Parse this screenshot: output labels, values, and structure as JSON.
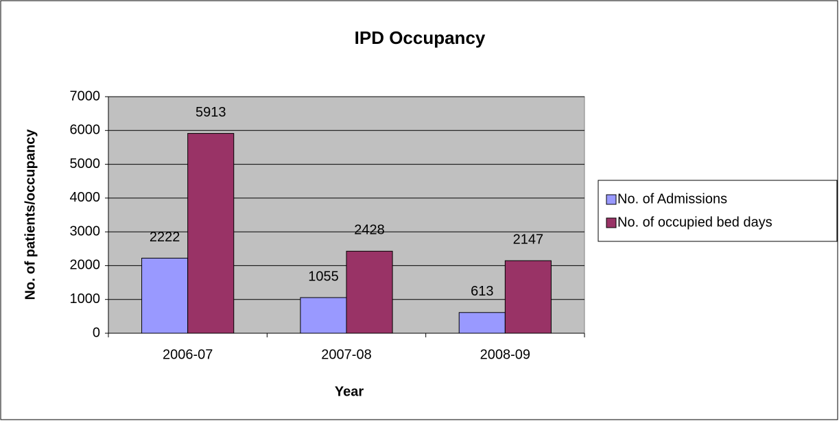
{
  "chart_data": {
    "type": "bar",
    "title": "IPD Occupancy",
    "x_label": "Year",
    "y_label": "No. of patients/occupancy",
    "categories": [
      "2006-07",
      "2007-08",
      "2008-09"
    ],
    "series": [
      {
        "name": "No. of Admissions",
        "color": "#9999ff",
        "values": [
          2222,
          1055,
          613
        ]
      },
      {
        "name": "No. of occupied bed days",
        "color": "#993366",
        "values": [
          5913,
          2428,
          2147
        ]
      }
    ],
    "ylim": [
      0,
      7000
    ],
    "yticks": [
      0,
      1000,
      2000,
      3000,
      4000,
      5000,
      6000,
      7000
    ],
    "grid": true,
    "plot_background": "#c0c0c0",
    "legend": "right"
  }
}
